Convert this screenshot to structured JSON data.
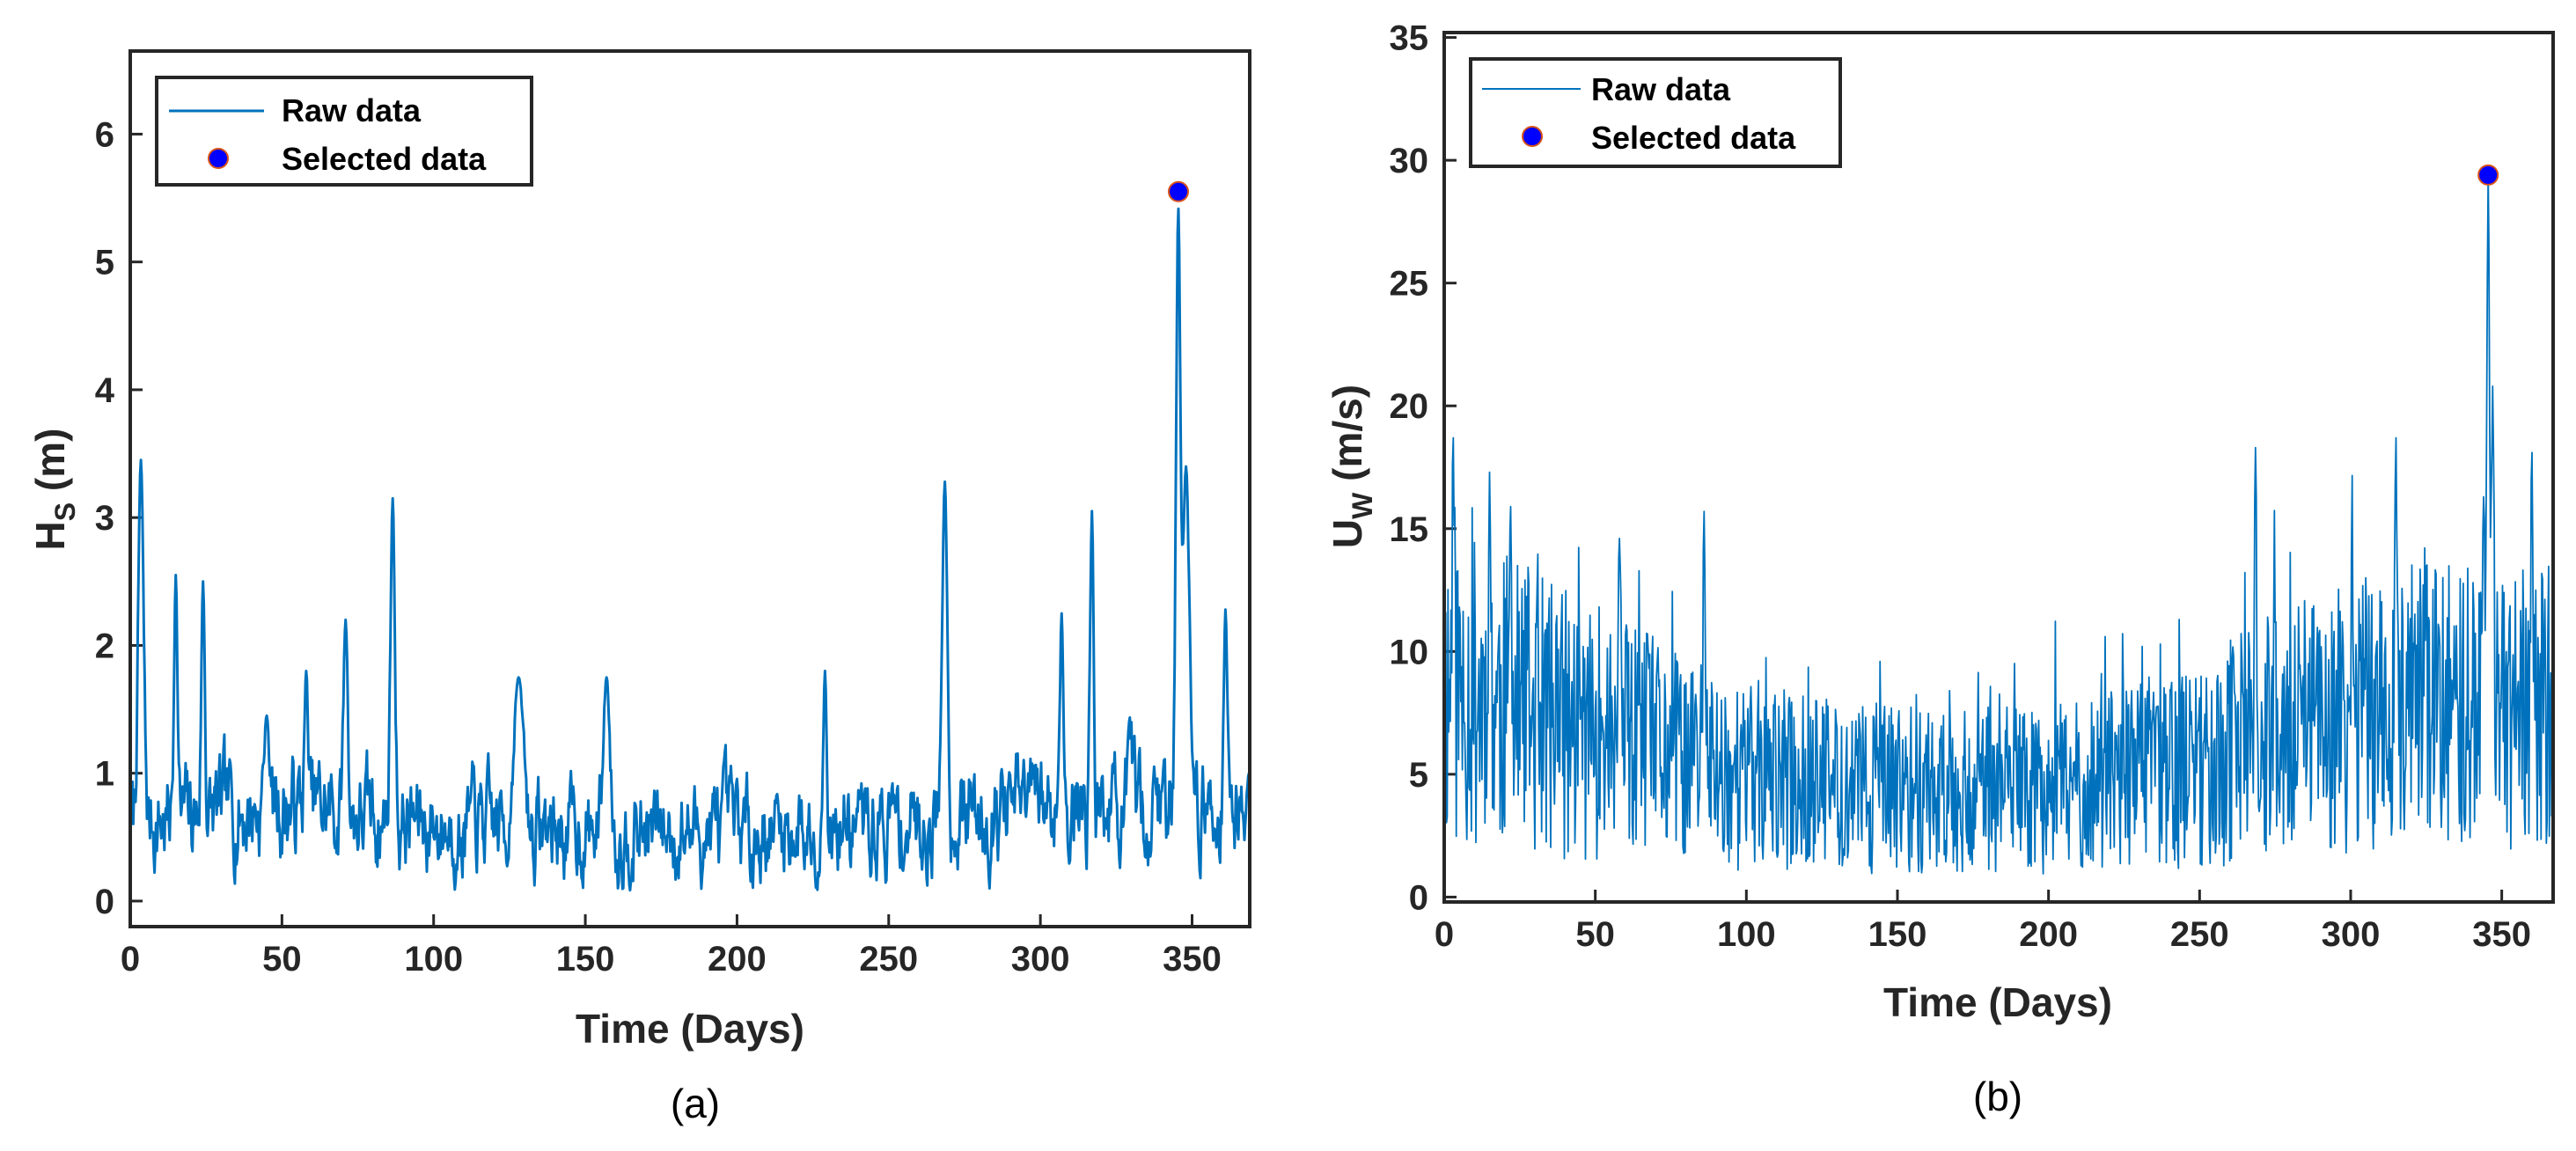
{
  "colors": {
    "line": "#0072BD",
    "marker_fill": "#0000FF",
    "marker_edge": "#D95319",
    "axis": "#262626"
  },
  "chart_data": [
    {
      "type": "line",
      "panel": "a",
      "caption": "(a)",
      "xlabel": "Time (Days)",
      "ylabel_main": "H",
      "ylabel_sub": "S",
      "ylabel_unit": " (m)",
      "xlim": [
        0,
        369
      ],
      "ylim": [
        -0.2,
        6.65
      ],
      "xticks": [
        0,
        50,
        100,
        150,
        200,
        250,
        300,
        350
      ],
      "yticks": [
        0,
        1,
        2,
        3,
        4,
        5,
        6
      ],
      "legend": {
        "position": "top-left",
        "entries": [
          "Raw data",
          "Selected data"
        ]
      },
      "raw_data": {
        "name": "Raw data",
        "seed": 7,
        "points_per_day": 4,
        "mean_profile": [
          [
            0,
            0.6
          ],
          [
            50,
            0.75
          ],
          [
            100,
            0.6
          ],
          [
            150,
            0.55
          ],
          [
            200,
            0.55
          ],
          [
            250,
            0.6
          ],
          [
            300,
            0.75
          ],
          [
            369,
            0.75
          ]
        ],
        "peaks": [
          [
            3.5,
            3.45,
            1.2
          ],
          [
            15,
            2.55,
            0.8
          ],
          [
            24,
            2.5,
            0.8
          ],
          [
            45,
            1.45,
            1.2
          ],
          [
            58,
            1.8,
            0.8
          ],
          [
            71,
            2.2,
            1.0
          ],
          [
            86.5,
            3.15,
            1.0
          ],
          [
            128,
            1.75,
            2.2
          ],
          [
            157,
            1.75,
            1.5
          ],
          [
            229,
            1.8,
            0.8
          ],
          [
            268.5,
            3.28,
            1.2
          ],
          [
            307,
            2.25,
            0.8
          ],
          [
            317,
            3.05,
            0.8
          ],
          [
            345.5,
            5.55,
            1.1
          ],
          [
            348,
            3.4,
            1.5
          ],
          [
            361,
            2.28,
            0.8
          ]
        ]
      },
      "selected_data": {
        "name": "Selected data",
        "x": [
          345.5
        ],
        "y": [
          5.55
        ]
      }
    },
    {
      "type": "line",
      "panel": "b",
      "caption": "(b)",
      "xlabel": "Time (Days)",
      "ylabel_main": "U",
      "ylabel_sub": "W",
      "ylabel_unit": " (m/s)",
      "xlim": [
        0,
        367
      ],
      "ylim": [
        -0.2,
        35.2
      ],
      "xticks": [
        0,
        50,
        100,
        150,
        200,
        250,
        300,
        350
      ],
      "yticks": [
        0,
        5,
        10,
        15,
        20,
        25,
        30,
        35
      ],
      "legend": {
        "position": "top-left",
        "entries": [
          "Raw data",
          "Selected data"
        ]
      },
      "raw_data": {
        "name": "Raw data",
        "seed": 11,
        "points_per_day": 4,
        "mean_profile": [
          [
            0,
            8.0
          ],
          [
            40,
            6.5
          ],
          [
            100,
            4.5
          ],
          [
            150,
            4.0
          ],
          [
            200,
            4.0
          ],
          [
            250,
            5.0
          ],
          [
            300,
            7.0
          ],
          [
            369,
            7.0
          ]
        ],
        "peaks": [
          [
            3,
            18.7,
            0.5
          ],
          [
            15,
            17.3,
            0.5
          ],
          [
            22,
            15.9,
            0.5
          ],
          [
            58,
            14.6,
            0.5
          ],
          [
            86,
            15.7,
            0.5
          ],
          [
            268.5,
            18.3,
            0.5
          ],
          [
            315,
            18.7,
            0.5
          ],
          [
            344,
            16.3,
            0.5
          ],
          [
            345.5,
            29.4,
            0.6
          ],
          [
            347,
            20.8,
            0.6
          ],
          [
            360,
            18.1,
            0.5
          ]
        ]
      },
      "selected_data": {
        "name": "Selected data",
        "x": [
          345.5
        ],
        "y": [
          29.4
        ]
      }
    }
  ]
}
